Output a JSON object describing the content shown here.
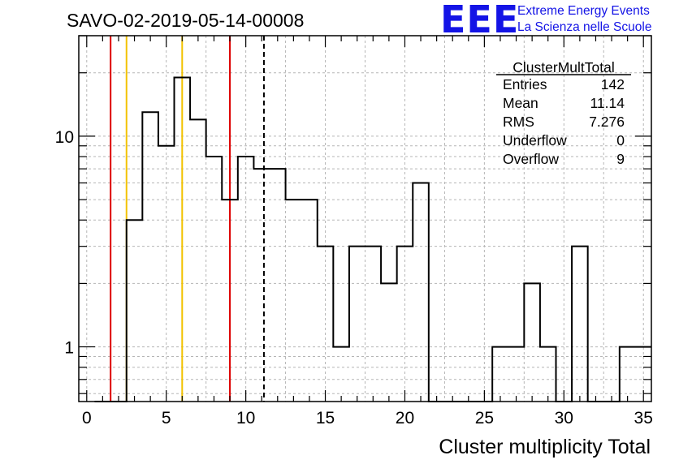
{
  "chart_data": {
    "type": "histogram",
    "title": "SAVO-02-2019-05-14-00008",
    "xlabel": "Cluster multiplicity Total",
    "ylabel": "",
    "logo": {
      "mark": "EEE",
      "line1": "Extreme Energy Events",
      "line2": "La Scienza nelle Scuole"
    },
    "x_scale": "linear",
    "y_scale": "log",
    "xlim": [
      -0.5,
      35.5
    ],
    "ylim": [
      0.55,
      30
    ],
    "x_tick_labels": [
      "0",
      "5",
      "10",
      "15",
      "20",
      "25",
      "30",
      "35"
    ],
    "y_tick_labels": [
      "1",
      "10"
    ],
    "grid": true,
    "bin_edges": [
      0.5,
      1.5,
      2.5,
      3.5,
      4.5,
      5.5,
      6.5,
      7.5,
      8.5,
      9.5,
      10.5,
      11.5,
      12.5,
      13.5,
      14.5,
      15.5,
      16.5,
      17.5,
      18.5,
      19.5,
      20.5,
      21.5,
      22.5,
      23.5,
      24.5,
      25.5,
      26.5,
      27.5,
      28.5,
      29.5,
      30.5,
      31.5,
      32.5,
      33.5,
      34.5,
      35.5
    ],
    "counts": [
      0,
      0,
      4,
      13,
      9,
      19,
      12,
      8,
      5,
      8,
      7,
      7,
      5,
      5,
      3,
      1,
      3,
      3,
      2,
      3,
      6,
      0,
      0,
      0,
      0,
      1,
      1,
      2,
      1,
      0,
      3,
      0,
      0,
      1,
      1
    ],
    "vertical_lines": [
      {
        "x": 1.5,
        "color": "#dd0000",
        "style": "solid"
      },
      {
        "x": 2.5,
        "color": "#f2c200",
        "style": "solid"
      },
      {
        "x": 6.0,
        "color": "#f2c200",
        "style": "solid"
      },
      {
        "x": 9.0,
        "color": "#dd0000",
        "style": "solid"
      },
      {
        "x": 11.14,
        "color": "#000000",
        "style": "dashed"
      }
    ],
    "stats_box": {
      "title": "ClusterMultTotal",
      "rows": [
        {
          "label": "Entries",
          "value": "142"
        },
        {
          "label": "Mean",
          "value": "11.14"
        },
        {
          "label": "RMS",
          "value": "7.276"
        },
        {
          "label": "Underflow",
          "value": "0"
        },
        {
          "label": "Overflow",
          "value": "9"
        }
      ]
    }
  }
}
